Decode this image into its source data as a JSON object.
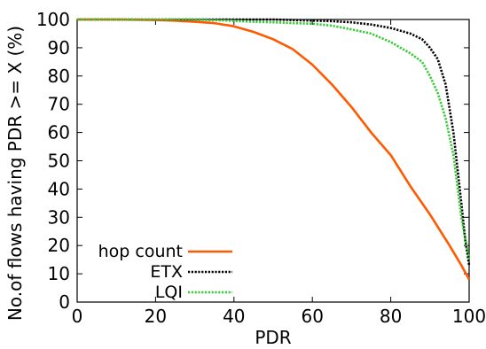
{
  "chart_data": {
    "type": "line",
    "title": "",
    "xlabel": "PDR",
    "ylabel": "No.of flows having PDR >= X (%)",
    "xlim": [
      0,
      100
    ],
    "ylim": [
      0,
      100
    ],
    "x_ticks": [
      "0",
      "20",
      "40",
      "60",
      "80",
      "100"
    ],
    "y_ticks": [
      "0",
      "10",
      "20",
      "30",
      "40",
      "50",
      "60",
      "70",
      "80",
      "90",
      "100"
    ],
    "grid": false,
    "legend_position": "bottom-left",
    "series": [
      {
        "name": "hop count",
        "color": "#ff5a00",
        "style": "solid",
        "x": [
          0,
          10,
          20,
          25,
          30,
          35,
          40,
          45,
          50,
          55,
          60,
          65,
          70,
          75,
          80,
          85,
          90,
          95,
          98,
          100
        ],
        "y": [
          100,
          100,
          99.8,
          99.6,
          99.2,
          98.7,
          97.6,
          95.6,
          93,
          89.5,
          84,
          77,
          69,
          60,
          52,
          41,
          31,
          20,
          13,
          8
        ]
      },
      {
        "name": "ETX",
        "color": "#000000",
        "style": "dotted",
        "x": [
          0,
          20,
          30,
          40,
          50,
          60,
          65,
          70,
          75,
          80,
          85,
          88,
          90,
          92,
          94,
          96,
          98,
          99,
          100
        ],
        "y": [
          100,
          100,
          100,
          100,
          100,
          99.6,
          99.4,
          99,
          98.2,
          97,
          95,
          93,
          90,
          86,
          77,
          60,
          35,
          22,
          13
        ]
      },
      {
        "name": "LQI",
        "color": "#33cc33",
        "style": "dotted",
        "x": [
          0,
          20,
          30,
          40,
          45,
          50,
          55,
          60,
          65,
          70,
          75,
          80,
          85,
          88,
          90,
          92,
          94,
          96,
          98,
          100
        ],
        "y": [
          100,
          100,
          100,
          99.5,
          99.2,
          99,
          98.7,
          98.5,
          97.8,
          96.5,
          95,
          92,
          88,
          85,
          80,
          74,
          65,
          52,
          30,
          15
        ]
      }
    ]
  }
}
